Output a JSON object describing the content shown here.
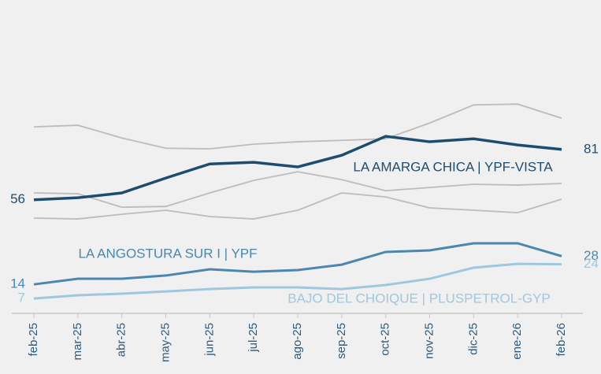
{
  "chart_data": {
    "type": "line",
    "categories": [
      "feb-25",
      "mar-25",
      "abr-25",
      "may-25",
      "jun-25",
      "jul-25",
      "ago-25",
      "sep-25",
      "oct-25",
      "nov-25",
      "dic-25",
      "ene-26",
      "feb-26"
    ],
    "ylim": [
      0,
      120
    ],
    "series": [
      {
        "color": "#bcbcbc",
        "values": [
          92.2,
          93,
          86.7,
          81.6,
          81.3,
          83.6,
          84.8,
          85.5,
          86.3,
          94.1,
          103.1,
          103.5,
          96.5
        ]
      },
      {
        "color": "#bcbcbc",
        "values": [
          59.4,
          59,
          52.3,
          52.7,
          59.4,
          65.6,
          69.9,
          66,
          60.5,
          62.1,
          63.7,
          63.3,
          64.1
        ]
      },
      {
        "color": "#bcbcbc",
        "values": [
          46.9,
          46.5,
          48.8,
          50.8,
          47.7,
          46.5,
          50.8,
          59.4,
          57.4,
          52,
          50.8,
          49.6,
          56.3
        ]
      },
      {
        "name": "LA AMARGA CHICA | YPF-VISTA",
        "color": "#1c4d6f",
        "values": [
          56,
          57,
          59.4,
          66.8,
          73.8,
          74.6,
          72.3,
          78.1,
          87.5,
          84.8,
          86.3,
          83.2,
          81
        ]
      },
      {
        "name": "LA ANGOSTURA SUR I | YPF",
        "color": "#4a87b0",
        "values": [
          14,
          16.8,
          16.8,
          18.4,
          21.5,
          20.3,
          21.1,
          23.8,
          30.1,
          30.9,
          34.4,
          34.4,
          28
        ]
      },
      {
        "name": "BAJO DEL CHOIQUE | PLUSPETROL-GYP",
        "color": "#9fc7df",
        "values": [
          7,
          8.6,
          9.4,
          10.5,
          11.7,
          12.5,
          12.5,
          11.7,
          13.7,
          16.8,
          22.3,
          24.2,
          24
        ]
      }
    ]
  }
}
